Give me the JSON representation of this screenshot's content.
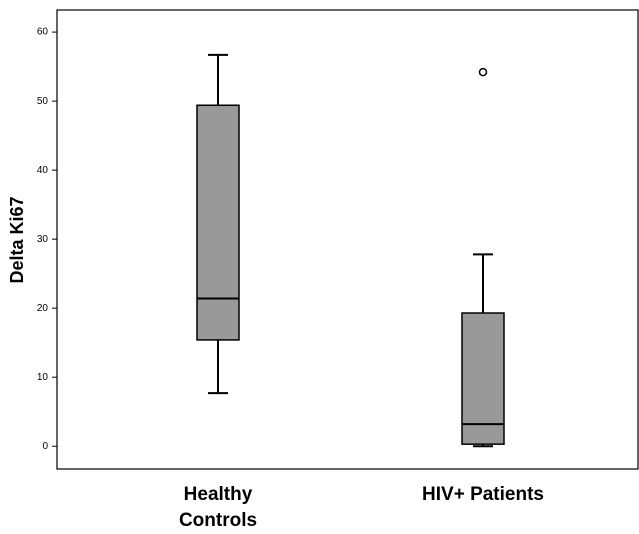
{
  "chart_data": {
    "type": "box",
    "y_label": "Delta Ki67",
    "categories": [
      "Healthy Controls",
      "HIV+ Patients"
    ],
    "boxes": [
      {
        "whisker_low": 7.7,
        "q1": 15.4,
        "median": 21.4,
        "q3": 49.4,
        "whisker_high": 56.7,
        "outliers": []
      },
      {
        "whisker_low": 0,
        "q1": 0.3,
        "median": 3.2,
        "q3": 19.3,
        "whisker_high": 27.8,
        "outliers": [
          54.2
        ]
      }
    ],
    "color": "#999999",
    "ylim": [
      -3.3,
      63.2
    ],
    "yticks": [
      0,
      10,
      20,
      30,
      40,
      50,
      60
    ],
    "grid": false
  }
}
